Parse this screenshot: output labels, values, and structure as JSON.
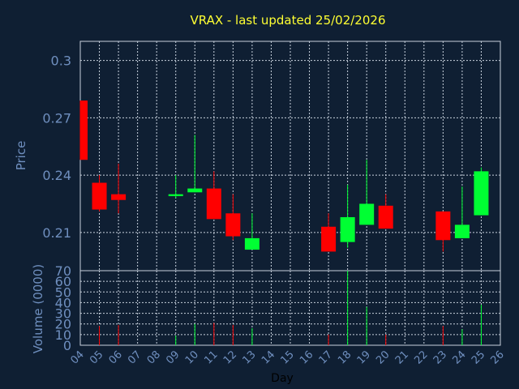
{
  "chart_data": {
    "type": "candlestick",
    "title": "VRAX - last updated 25/02/2026",
    "price_panel": {
      "ylabel": "Price",
      "ylim": [
        0.19,
        0.31
      ],
      "yticks": [
        "0.21",
        "0.24",
        "0.27",
        "0.3"
      ],
      "grid": true
    },
    "volume_panel": {
      "ylabel": "Volume (0000)",
      "ylim": [
        0,
        70
      ],
      "yticks": [
        "0",
        "10",
        "20",
        "30",
        "40",
        "50",
        "60",
        "70"
      ],
      "grid": true
    },
    "xlabel": "Day",
    "categories": [
      "04",
      "05",
      "06",
      "07",
      "08",
      "09",
      "10",
      "11",
      "12",
      "13",
      "14",
      "15",
      "16",
      "17",
      "18",
      "19",
      "20",
      "21",
      "22",
      "23",
      "24",
      "25",
      "26"
    ],
    "candles": [
      {
        "day": "04",
        "open": 0.279,
        "high": 0.279,
        "low": 0.248,
        "close": 0.248,
        "volume": 0
      },
      {
        "day": "05",
        "open": 0.236,
        "high": 0.24,
        "low": 0.221,
        "close": 0.222,
        "volume": 18
      },
      {
        "day": "06",
        "open": 0.23,
        "high": 0.246,
        "low": 0.22,
        "close": 0.227,
        "volume": 19
      },
      {
        "day": "09",
        "open": 0.229,
        "high": 0.24,
        "low": 0.228,
        "close": 0.23,
        "volume": 9
      },
      {
        "day": "10",
        "open": 0.231,
        "high": 0.261,
        "low": 0.231,
        "close": 0.233,
        "volume": 20
      },
      {
        "day": "11",
        "open": 0.233,
        "high": 0.242,
        "low": 0.217,
        "close": 0.217,
        "volume": 21
      },
      {
        "day": "12",
        "open": 0.22,
        "high": 0.23,
        "low": 0.206,
        "close": 0.208,
        "volume": 19
      },
      {
        "day": "13",
        "open": 0.201,
        "high": 0.22,
        "low": 0.201,
        "close": 0.207,
        "volume": 16
      },
      {
        "day": "17",
        "open": 0.213,
        "high": 0.22,
        "low": 0.2,
        "close": 0.2,
        "volume": 10
      },
      {
        "day": "18",
        "open": 0.205,
        "high": 0.235,
        "low": 0.202,
        "close": 0.218,
        "volume": 70
      },
      {
        "day": "19",
        "open": 0.214,
        "high": 0.248,
        "low": 0.214,
        "close": 0.225,
        "volume": 36
      },
      {
        "day": "20",
        "open": 0.224,
        "high": 0.23,
        "low": 0.212,
        "close": 0.212,
        "volume": 10
      },
      {
        "day": "23",
        "open": 0.221,
        "high": 0.221,
        "low": 0.2,
        "close": 0.206,
        "volume": 18
      },
      {
        "day": "24",
        "open": 0.207,
        "high": 0.234,
        "low": 0.207,
        "close": 0.214,
        "volume": 15
      },
      {
        "day": "25",
        "open": 0.219,
        "high": 0.244,
        "low": 0.219,
        "close": 0.242,
        "volume": 38
      }
    ],
    "colors": {
      "background": "#0f1f33",
      "up": "#00ff33",
      "down": "#ff0000",
      "grid": "#c9d2de",
      "axis_text": "#6f8fbf",
      "title": "#ffff33",
      "xlabel": "#000000"
    }
  }
}
